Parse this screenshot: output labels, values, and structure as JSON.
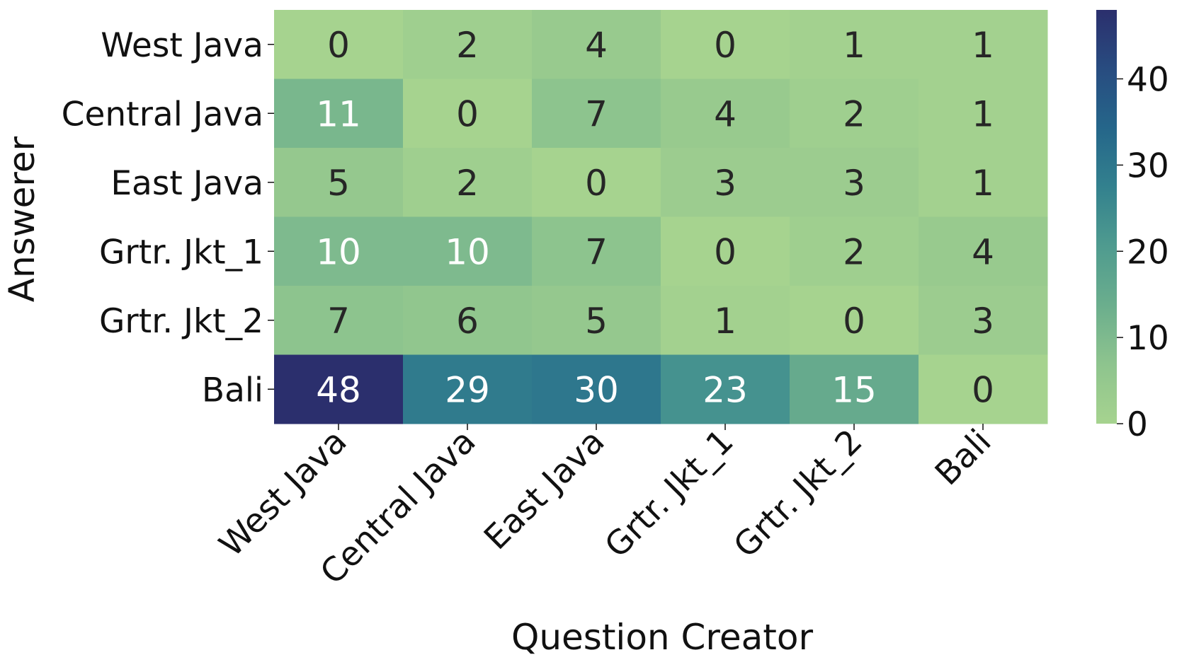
{
  "chart_data": {
    "type": "heatmap",
    "title": "",
    "xlabel": "Question Creator",
    "ylabel": "Answerer",
    "x_categories": [
      "West Java",
      "Central Java",
      "East Java",
      "Grtr. Jkt_1",
      "Grtr. Jkt_2",
      "Bali"
    ],
    "y_categories": [
      "West Java",
      "Central Java",
      "East Java",
      "Grtr. Jkt_1",
      "Grtr. Jkt_2",
      "Bali"
    ],
    "values": [
      [
        0,
        2,
        4,
        0,
        1,
        1
      ],
      [
        11,
        0,
        7,
        4,
        2,
        1
      ],
      [
        5,
        2,
        0,
        3,
        3,
        1
      ],
      [
        10,
        10,
        7,
        0,
        2,
        4
      ],
      [
        7,
        6,
        5,
        1,
        0,
        3
      ],
      [
        48,
        29,
        30,
        23,
        15,
        0
      ]
    ],
    "colorbar": {
      "min": 0,
      "max": 48,
      "ticks": [
        0,
        10,
        20,
        30,
        40
      ]
    },
    "colormap": [
      "#a6d38f",
      "#8ec48e",
      "#6bae8d",
      "#4f9b8f",
      "#33818e",
      "#25668a",
      "#284c80",
      "#2b2f6d"
    ],
    "annotation_text_colors": {
      "light": "#ffffff",
      "dark": "#262626"
    }
  }
}
